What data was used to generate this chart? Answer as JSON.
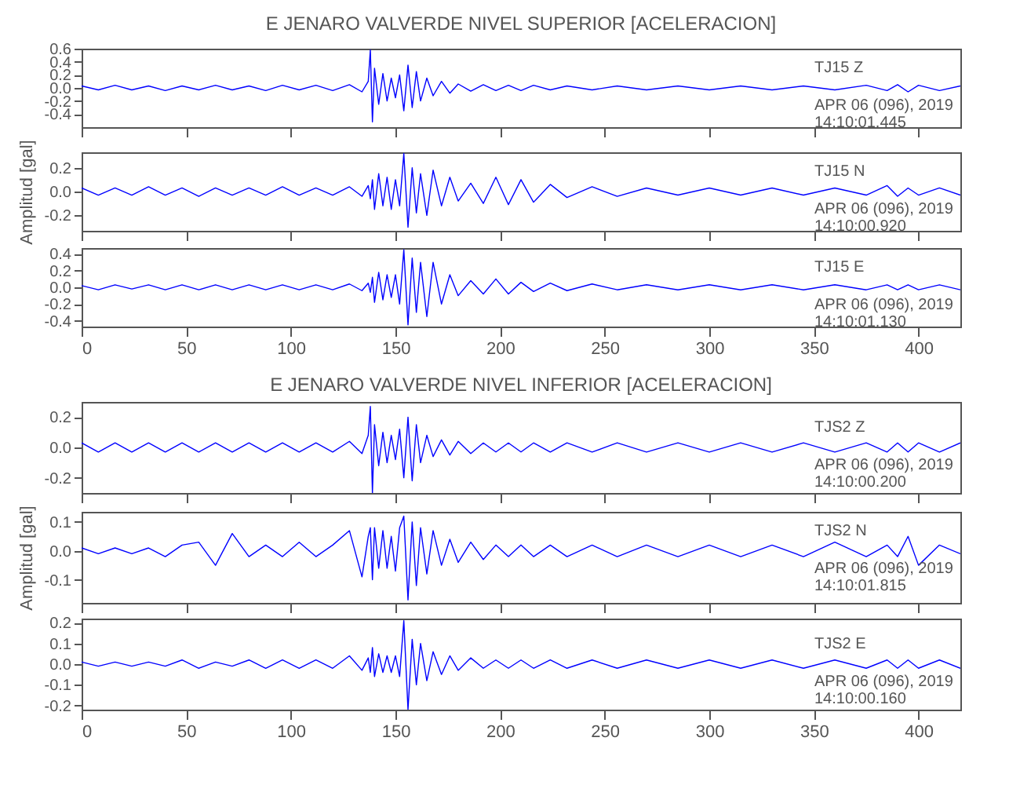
{
  "chart_data": [
    {
      "type": "line",
      "title": "E JENARO VALVERDE NIVEL SUPERIOR [ACELERACION]",
      "annotations": [
        "TJ15   Z",
        "APR 06 (096), 2019",
        "14:10:01.445"
      ],
      "color": "#0000ff",
      "tick_labels": "y",
      "xlim": [
        0,
        420
      ],
      "xticks": [
        0,
        50,
        100,
        150,
        200,
        250,
        300,
        350,
        400
      ],
      "ylim": [
        -0.6,
        0.6
      ],
      "yticks": [
        {
          "value": -0.4,
          "label": "-0.4"
        },
        {
          "value": -0.2,
          "label": "-0.2"
        },
        {
          "value": 0,
          "label": "0.0"
        },
        {
          "value": 0.2,
          "label": "0.2"
        },
        {
          "value": 0.4,
          "label": "0.4"
        },
        {
          "value": 0.6,
          "label": "0.6"
        }
      ],
      "x": [
        0,
        8,
        16,
        24,
        32,
        40,
        48,
        56,
        64,
        72,
        80,
        88,
        96,
        104,
        112,
        120,
        128,
        134,
        137,
        138,
        139,
        140,
        142,
        144,
        146,
        148,
        150,
        152,
        154,
        156,
        158,
        160,
        162,
        165,
        168,
        172,
        176,
        180,
        186,
        192,
        198,
        204,
        210,
        216,
        224,
        232,
        244,
        256,
        270,
        285,
        300,
        315,
        330,
        345,
        360,
        375,
        385,
        390,
        395,
        400,
        410,
        420
      ],
      "values": [
        0.03,
        -0.03,
        0.04,
        -0.03,
        0.03,
        -0.04,
        0.03,
        -0.03,
        0.04,
        -0.03,
        0.03,
        -0.04,
        0.04,
        -0.03,
        0.04,
        -0.04,
        0.05,
        -0.06,
        0.1,
        0.58,
        -0.52,
        0.3,
        -0.25,
        0.22,
        -0.2,
        0.15,
        -0.15,
        0.2,
        -0.35,
        0.35,
        -0.3,
        0.25,
        -0.2,
        0.15,
        -0.12,
        0.1,
        -0.08,
        0.06,
        -0.05,
        0.05,
        -0.04,
        0.04,
        -0.04,
        0.04,
        -0.03,
        0.03,
        -0.03,
        0.03,
        -0.03,
        0.03,
        -0.03,
        0.03,
        -0.03,
        0.03,
        -0.03,
        0.04,
        -0.04,
        0.05,
        -0.06,
        0.04,
        -0.04,
        0.03
      ]
    },
    {
      "type": "line",
      "ylabel": "Amplitud [gal]",
      "annotations": [
        "TJ15   N",
        "APR 06 (096), 2019",
        "14:10:00.920"
      ],
      "color": "#0000ff",
      "tick_labels": "y",
      "xlim": [
        0,
        420
      ],
      "xticks": [
        0,
        50,
        100,
        150,
        200,
        250,
        300,
        350,
        400
      ],
      "ylim": [
        -0.33,
        0.33
      ],
      "yticks": [
        {
          "value": -0.2,
          "label": "-0.2"
        },
        {
          "value": 0,
          "label": "0.0"
        },
        {
          "value": 0.2,
          "label": "0.2"
        }
      ],
      "x": [
        0,
        8,
        16,
        24,
        32,
        40,
        48,
        56,
        64,
        72,
        80,
        88,
        96,
        104,
        112,
        120,
        128,
        134,
        137,
        138,
        139,
        140,
        142,
        144,
        146,
        148,
        150,
        152,
        154,
        156,
        158,
        160,
        162,
        165,
        168,
        172,
        176,
        180,
        186,
        192,
        198,
        204,
        210,
        216,
        224,
        232,
        244,
        256,
        270,
        285,
        300,
        315,
        330,
        345,
        360,
        375,
        385,
        390,
        395,
        400,
        410,
        420
      ],
      "values": [
        0.03,
        -0.03,
        0.03,
        -0.03,
        0.04,
        -0.03,
        0.03,
        -0.04,
        0.03,
        -0.03,
        0.03,
        -0.03,
        0.04,
        -0.03,
        0.03,
        -0.03,
        0.04,
        -0.04,
        0.05,
        -0.06,
        0.1,
        -0.15,
        0.15,
        -0.12,
        0.12,
        -0.15,
        0.1,
        -0.12,
        0.32,
        -0.3,
        0.2,
        -0.18,
        0.15,
        -0.2,
        0.18,
        -0.12,
        0.12,
        -0.08,
        0.07,
        -0.1,
        0.12,
        -0.11,
        0.1,
        -0.09,
        0.06,
        -0.05,
        0.04,
        -0.04,
        0.03,
        -0.03,
        0.03,
        -0.03,
        0.03,
        -0.03,
        0.03,
        -0.03,
        0.05,
        -0.04,
        0.03,
        -0.03,
        0.03,
        -0.03
      ]
    },
    {
      "type": "line",
      "annotations": [
        "TJ15   E",
        "APR 06 (096), 2019",
        "14:10:01.130"
      ],
      "color": "#0000ff",
      "xlim": [
        0,
        420
      ],
      "xticks": [
        0,
        50,
        100,
        150,
        200,
        250,
        300,
        350,
        400
      ],
      "ylim": [
        -0.47,
        0.47
      ],
      "yticks": [
        {
          "value": -0.4,
          "label": "-0.4"
        },
        {
          "value": -0.2,
          "label": "-0.2"
        },
        {
          "value": 0,
          "label": "0.0"
        },
        {
          "value": 0.2,
          "label": "0.2"
        },
        {
          "value": 0.4,
          "label": "0.4"
        }
      ],
      "x": [
        0,
        8,
        16,
        24,
        32,
        40,
        48,
        56,
        64,
        72,
        80,
        88,
        96,
        104,
        112,
        120,
        128,
        134,
        137,
        138,
        139,
        140,
        142,
        144,
        146,
        148,
        150,
        152,
        154,
        156,
        158,
        160,
        162,
        165,
        168,
        172,
        176,
        180,
        186,
        192,
        198,
        204,
        210,
        216,
        224,
        232,
        244,
        256,
        270,
        285,
        300,
        315,
        330,
        345,
        360,
        375,
        385,
        390,
        395,
        400,
        410,
        420
      ],
      "values": [
        0.02,
        -0.03,
        0.03,
        -0.02,
        0.03,
        -0.03,
        0.03,
        -0.03,
        0.03,
        -0.03,
        0.03,
        -0.03,
        0.03,
        -0.03,
        0.03,
        -0.03,
        0.04,
        -0.04,
        0.05,
        -0.06,
        0.12,
        -0.18,
        0.18,
        -0.15,
        0.15,
        -0.12,
        0.15,
        -0.2,
        0.45,
        -0.45,
        0.35,
        -0.3,
        0.3,
        -0.35,
        0.3,
        -0.2,
        0.15,
        -0.1,
        0.08,
        -0.08,
        0.1,
        -0.08,
        0.06,
        -0.05,
        0.05,
        -0.04,
        0.04,
        -0.03,
        0.03,
        -0.03,
        0.03,
        -0.03,
        0.03,
        -0.03,
        0.03,
        -0.03,
        0.03,
        -0.03,
        0.03,
        -0.03,
        0.03,
        -0.03
      ]
    },
    {
      "type": "line",
      "title": "E JENARO VALVERDE NIVEL INFERIOR [ACELERACION]",
      "annotations": [
        "TJS2   Z",
        "APR 06 (096), 2019",
        "14:10:00.200"
      ],
      "color": "#0000ff",
      "tick_labels": "y",
      "xlim": [
        0,
        420
      ],
      "xticks": [
        0,
        50,
        100,
        150,
        200,
        250,
        300,
        350,
        400
      ],
      "ylim": [
        -0.3,
        0.3
      ],
      "yticks": [
        {
          "value": -0.2,
          "label": "-0.2"
        },
        {
          "value": 0,
          "label": "0.0"
        },
        {
          "value": 0.2,
          "label": "0.2"
        }
      ],
      "x": [
        0,
        8,
        16,
        24,
        32,
        40,
        48,
        56,
        64,
        72,
        80,
        88,
        96,
        104,
        112,
        120,
        128,
        134,
        137,
        138,
        139,
        140,
        142,
        144,
        146,
        148,
        150,
        152,
        154,
        156,
        158,
        160,
        162,
        165,
        168,
        172,
        176,
        180,
        186,
        192,
        198,
        204,
        210,
        216,
        224,
        232,
        244,
        256,
        270,
        285,
        300,
        315,
        330,
        345,
        360,
        375,
        385,
        390,
        395,
        400,
        410,
        420
      ],
      "values": [
        0.03,
        -0.03,
        0.03,
        -0.03,
        0.03,
        -0.03,
        0.03,
        -0.03,
        0.03,
        -0.03,
        0.03,
        -0.03,
        0.03,
        -0.03,
        0.03,
        -0.03,
        0.04,
        -0.04,
        0.08,
        0.27,
        -0.3,
        0.15,
        -0.12,
        0.1,
        -0.1,
        0.08,
        -0.08,
        0.12,
        -0.2,
        0.2,
        -0.22,
        0.15,
        -0.1,
        0.08,
        -0.06,
        0.05,
        -0.05,
        0.04,
        -0.04,
        0.03,
        -0.03,
        0.03,
        -0.03,
        0.03,
        -0.03,
        0.03,
        -0.03,
        0.03,
        -0.03,
        0.03,
        -0.03,
        0.03,
        -0.03,
        0.03,
        -0.03,
        0.03,
        -0.03,
        0.03,
        -0.03,
        0.03,
        -0.03,
        0.03
      ]
    },
    {
      "type": "line",
      "ylabel": "Amplitud [gal]",
      "annotations": [
        "TJS2   N",
        "APR 06 (096), 2019",
        "14:10:01.815"
      ],
      "color": "#0000ff",
      "tick_labels": "y",
      "xlim": [
        0,
        420
      ],
      "xticks": [
        0,
        50,
        100,
        150,
        200,
        250,
        300,
        350,
        400
      ],
      "ylim": [
        -0.18,
        0.135
      ],
      "yticks": [
        {
          "value": -0.1,
          "label": "-0.1"
        },
        {
          "value": 0,
          "label": "0.0"
        },
        {
          "value": 0.1,
          "label": "0.1"
        }
      ],
      "x": [
        0,
        8,
        16,
        24,
        32,
        40,
        48,
        56,
        64,
        72,
        80,
        88,
        96,
        104,
        112,
        120,
        128,
        134,
        137,
        138,
        139,
        140,
        142,
        144,
        146,
        148,
        150,
        152,
        154,
        156,
        158,
        160,
        162,
        165,
        168,
        172,
        176,
        180,
        186,
        192,
        198,
        204,
        210,
        216,
        224,
        232,
        244,
        256,
        270,
        285,
        300,
        315,
        330,
        345,
        360,
        375,
        385,
        390,
        395,
        400,
        410,
        420
      ],
      "values": [
        0.01,
        -0.01,
        0.01,
        -0.01,
        0.01,
        -0.02,
        0.02,
        0.03,
        -0.05,
        0.06,
        -0.02,
        0.02,
        -0.02,
        0.03,
        -0.02,
        0.02,
        0.07,
        -0.09,
        0.05,
        0.08,
        -0.1,
        0.08,
        -0.06,
        0.07,
        -0.06,
        0.05,
        -0.07,
        0.08,
        0.12,
        -0.17,
        0.1,
        -0.12,
        0.08,
        -0.08,
        0.07,
        -0.05,
        0.04,
        -0.04,
        0.03,
        -0.03,
        0.02,
        -0.02,
        0.02,
        -0.02,
        0.02,
        -0.02,
        0.02,
        -0.02,
        0.02,
        -0.02,
        0.02,
        -0.02,
        0.02,
        -0.02,
        0.03,
        -0.02,
        0.02,
        -0.02,
        0.05,
        -0.05,
        0.02,
        -0.01
      ]
    },
    {
      "type": "line",
      "annotations": [
        "TJS2   E",
        "APR 06 (096), 2019",
        "14:10:00.160"
      ],
      "color": "#0000ff",
      "xlim": [
        0,
        420
      ],
      "xticks": [
        0,
        50,
        100,
        150,
        200,
        250,
        300,
        350,
        400
      ],
      "ylim": [
        -0.22,
        0.22
      ],
      "yticks": [
        {
          "value": -0.2,
          "label": "-0.2"
        },
        {
          "value": -0.1,
          "label": "-0.1"
        },
        {
          "value": 0,
          "label": "0.0"
        },
        {
          "value": 0.1,
          "label": "0.1"
        },
        {
          "value": 0.2,
          "label": "0.2"
        }
      ],
      "x": [
        0,
        8,
        16,
        24,
        32,
        40,
        48,
        56,
        64,
        72,
        80,
        88,
        96,
        104,
        112,
        120,
        128,
        134,
        137,
        138,
        139,
        140,
        142,
        144,
        146,
        148,
        150,
        152,
        154,
        156,
        158,
        160,
        162,
        165,
        168,
        172,
        176,
        180,
        186,
        192,
        198,
        204,
        210,
        216,
        224,
        232,
        244,
        256,
        270,
        285,
        300,
        315,
        330,
        345,
        360,
        375,
        385,
        390,
        395,
        400,
        410,
        420
      ],
      "values": [
        0.01,
        -0.01,
        0.01,
        -0.01,
        0.01,
        -0.01,
        0.02,
        -0.02,
        0.01,
        -0.01,
        0.02,
        -0.02,
        0.02,
        -0.02,
        0.02,
        -0.02,
        0.04,
        -0.03,
        0.03,
        -0.04,
        0.08,
        -0.06,
        0.05,
        -0.04,
        0.04,
        -0.04,
        0.04,
        -0.06,
        0.21,
        -0.22,
        0.12,
        -0.1,
        0.1,
        -0.08,
        0.06,
        -0.05,
        0.04,
        -0.03,
        0.03,
        -0.02,
        0.02,
        -0.02,
        0.02,
        -0.02,
        0.02,
        -0.02,
        0.02,
        -0.02,
        0.02,
        -0.02,
        0.02,
        -0.02,
        0.02,
        -0.02,
        0.02,
        -0.02,
        0.02,
        -0.02,
        0.02,
        -0.02,
        0.02,
        -0.02
      ]
    }
  ]
}
